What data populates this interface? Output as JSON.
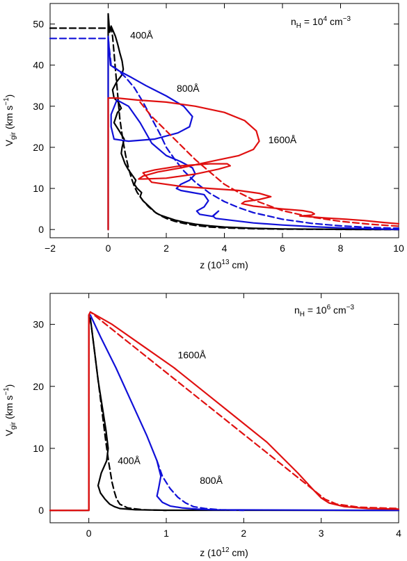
{
  "colors": {
    "black": "#000000",
    "blue": "#1010d8",
    "red": "#e01010"
  },
  "chart_data": [
    {
      "type": "line",
      "xlabel": {
        "base": "z (10",
        "sup": "13",
        "unit": " cm)"
      },
      "ylabel": {
        "main": "V",
        "sub": "gir",
        "unit": " (km s",
        "sup": "−1",
        "close": ")"
      },
      "xlim": [
        -2,
        10
      ],
      "ylim": [
        -2,
        55
      ],
      "xticks": [
        -2,
        0,
        2,
        4,
        6,
        8,
        10
      ],
      "xtick_labels": [
        "−2",
        "0",
        "2",
        "4",
        "6",
        "8",
        "10"
      ],
      "yticks": [
        0,
        10,
        20,
        30,
        40,
        50
      ],
      "ytick_labels": [
        "0",
        "10",
        "20",
        "30",
        "40",
        "50"
      ],
      "density_label": {
        "main": "n",
        "sub": "H",
        "eq": " = 10",
        "sup": "4",
        "unit": " cm",
        "sup2": "−3"
      },
      "annotations": [
        {
          "text": "400Å",
          "x": 1.15,
          "y": 46.5
        },
        {
          "text": "800Å",
          "x": 2.75,
          "y": 33.5
        },
        {
          "text": "1600Å",
          "x": 6.0,
          "y": 21.0
        }
      ],
      "series": [
        {
          "color": "black",
          "style": "solid",
          "x": [
            0,
            0,
            0.05,
            0.1,
            0.16,
            0.25,
            0.33,
            0.4,
            0.48,
            0.52,
            0.46,
            0.3,
            0.15,
            0.2,
            0.35,
            0.45,
            0.32,
            0.2,
            0.38,
            0.55,
            0.48,
            0.45,
            0.58,
            0.7,
            0.85,
            0.95,
            0.9,
            1.0,
            1.15,
            1.1,
            1.2,
            1.35,
            1.5,
            1.65,
            1.8,
            2.0,
            2.3,
            2.6,
            3.0,
            3.5,
            4.0,
            5.0,
            6.0,
            8.0,
            10.0
          ],
          "y": [
            0,
            52.5,
            48,
            49.5,
            48.5,
            47,
            45,
            43,
            41,
            39,
            37.5,
            36,
            34,
            32,
            31,
            29.5,
            28.5,
            26,
            24,
            22,
            20,
            18.5,
            16,
            14.5,
            13,
            12,
            11,
            10,
            9,
            8,
            7,
            6,
            5,
            4,
            3.5,
            3,
            2.3,
            1.8,
            1.3,
            0.9,
            0.6,
            0.3,
            0.15,
            0.05,
            0
          ]
        },
        {
          "color": "black",
          "style": "dashed",
          "x": [
            -2,
            0,
            0.1,
            0.15,
            0.2,
            0.25,
            0.3,
            0.35,
            0.4,
            0.5,
            0.6,
            0.7,
            0.8,
            0.9,
            1.0,
            1.2,
            1.4,
            1.6,
            1.8,
            2.0,
            2.3,
            2.6,
            3.0,
            3.5,
            4.0,
            5.0,
            6.0,
            8.0,
            10.0
          ],
          "y": [
            49,
            49,
            49,
            47,
            43,
            39,
            35,
            31,
            27,
            22,
            18,
            15,
            12.5,
            10.5,
            9,
            7,
            5.5,
            4.3,
            3.4,
            2.7,
            2.0,
            1.5,
            1.0,
            0.6,
            0.4,
            0.2,
            0.1,
            0.03,
            0
          ]
        },
        {
          "color": "blue",
          "style": "solid",
          "x": [
            0,
            0,
            0.08,
            0.18,
            0.4,
            0.8,
            1.3,
            2.0,
            2.6,
            2.9,
            2.8,
            2.4,
            1.6,
            0.7,
            0.2,
            0.1,
            0.1,
            0.3,
            0.7,
            1.1,
            1.5,
            2.0,
            2.5,
            2.9,
            3.0,
            2.8,
            2.5,
            2.35,
            2.5,
            2.9,
            3.3,
            3.45,
            3.3,
            3.05,
            3.15,
            3.6,
            3.8,
            3.6,
            3.7,
            4.3,
            5.0,
            6.0,
            7.0,
            8.0,
            9.0,
            10.0
          ],
          "y": [
            0,
            47,
            40,
            39.5,
            38.5,
            37,
            35,
            32.5,
            30,
            27.5,
            25,
            23.5,
            22,
            21.5,
            22,
            25,
            28,
            31.5,
            30,
            26,
            21,
            18,
            16.5,
            15,
            13.5,
            12,
            11,
            10,
            9.5,
            9,
            8.5,
            7,
            5.5,
            4.5,
            3.7,
            3.2,
            4.5,
            3.3,
            2.7,
            2.2,
            1.6,
            1.1,
            0.7,
            0.4,
            0.2,
            0
          ]
        },
        {
          "color": "blue",
          "style": "dashed",
          "x": [
            -2,
            0,
            0.1,
            0.3,
            0.6,
            0.9,
            1.2,
            1.5,
            1.8,
            2.0,
            2.3,
            2.6,
            3.0,
            3.5,
            4.0,
            4.5,
            5.0,
            6.0,
            7.0,
            8.0,
            9.0,
            10.0
          ],
          "y": [
            46.5,
            46.5,
            40,
            39,
            37,
            34.5,
            31,
            27,
            23,
            20,
            17,
            14.3,
            11.5,
            8.8,
            6.8,
            5.3,
            4.1,
            2.5,
            1.5,
            0.9,
            0.5,
            0.3
          ]
        },
        {
          "color": "red",
          "style": "solid",
          "x": [
            0,
            0,
            0.3,
            1.0,
            2.0,
            3.0,
            4.0,
            4.7,
            5.1,
            5.2,
            5.0,
            4.5,
            3.5,
            2.5,
            1.7,
            1.2,
            1.05,
            1.2,
            2.0,
            3.0,
            3.8,
            4.2,
            4.1,
            3.5,
            2.5,
            1.6,
            1.2,
            1.5,
            2.5,
            3.5,
            4.5,
            5.2,
            5.6,
            5.2,
            4.7,
            4.6,
            5.0,
            6.0,
            6.7,
            7.0,
            7.1,
            7.0,
            6.6,
            7.5,
            8.2,
            8.8,
            9.2,
            9.5,
            10.0
          ],
          "y": [
            0,
            32,
            32,
            31.5,
            31,
            30,
            28.5,
            26.5,
            24,
            21.5,
            19.5,
            18,
            16.5,
            15,
            14,
            13,
            12.3,
            12.3,
            12.5,
            13.5,
            14.7,
            15.5,
            16,
            16,
            15.5,
            14.5,
            13.8,
            11.5,
            10.5,
            10,
            9.5,
            8.8,
            8.0,
            7.3,
            6.8,
            6.3,
            5.7,
            5.0,
            4.6,
            4.2,
            3.8,
            3.5,
            3.3,
            2.8,
            2.5,
            2.2,
            1.9,
            1.7,
            1.4
          ]
        },
        {
          "color": "red",
          "style": "dashed",
          "x": [
            1.1,
            1.5,
            2.0,
            2.5,
            3.0,
            3.5,
            4.0,
            4.5,
            5.0,
            6.0,
            7.0,
            8.0,
            9.0,
            10.0
          ],
          "y": [
            31,
            27.5,
            24,
            20.5,
            17,
            14,
            11,
            9,
            7.2,
            4.6,
            3.0,
            2.0,
            1.3,
            0.8
          ]
        }
      ]
    },
    {
      "type": "line",
      "xlabel": {
        "base": "z (10",
        "sup": "12",
        "unit": " cm)"
      },
      "ylabel": {
        "main": "V",
        "sub": "gir",
        "unit": " (km s",
        "sup": "−1",
        "close": ")"
      },
      "xlim": [
        -0.5,
        4
      ],
      "ylim": [
        -2,
        35
      ],
      "xticks": [
        0,
        1,
        2,
        3,
        4
      ],
      "xtick_labels": [
        "0",
        "1",
        "2",
        "3",
        "4"
      ],
      "yticks": [
        0,
        10,
        20,
        30
      ],
      "ytick_labels": [
        "0",
        "10",
        "20",
        "30"
      ],
      "density_label": {
        "main": "n",
        "sub": "H",
        "eq": " = 10",
        "sup": "6",
        "unit": " cm",
        "sup2": "−3"
      },
      "annotations": [
        {
          "text": "1600Å",
          "x": 1.33,
          "y": 24.5
        },
        {
          "text": "400Å",
          "x": 0.52,
          "y": 7.5
        },
        {
          "text": "800Å",
          "x": 1.58,
          "y": 4.3
        }
      ],
      "series": [
        {
          "color": "black",
          "style": "solid",
          "x": [
            -0.5,
            0.0,
            0.0,
            0.03,
            0.07,
            0.12,
            0.17,
            0.22,
            0.25,
            0.23,
            0.16,
            0.12,
            0.15,
            0.21,
            0.27,
            0.33,
            0.4,
            0.6,
            1.0,
            4.0
          ],
          "y": [
            0,
            0,
            31.5,
            30,
            26,
            21,
            17,
            13,
            10,
            8,
            6,
            4,
            2.8,
            1.8,
            1.0,
            0.6,
            0.3,
            0.1,
            0.02,
            0
          ]
        },
        {
          "color": "black",
          "style": "dashed",
          "x": [
            0.02,
            0.1,
            0.17,
            0.22,
            0.26,
            0.3,
            0.33,
            0.36,
            0.4,
            0.5,
            0.7,
            1.0
          ],
          "y": [
            31,
            23,
            16,
            11,
            7.5,
            4.5,
            3,
            1.8,
            1.0,
            0.4,
            0.1,
            0
          ]
        },
        {
          "color": "blue",
          "style": "solid",
          "x": [
            0.02,
            0.15,
            0.35,
            0.55,
            0.75,
            0.88,
            0.93,
            0.9,
            0.88,
            0.95,
            1.05,
            1.2,
            1.4,
            1.6,
            4.0
          ],
          "y": [
            31.5,
            28,
            23,
            17.5,
            12,
            8,
            5.5,
            3.5,
            2.3,
            1.3,
            0.7,
            0.4,
            0.2,
            0.1,
            0
          ]
        },
        {
          "color": "blue",
          "style": "dashed",
          "x": [
            0.88,
            0.95,
            1.05,
            1.15,
            1.25,
            1.35,
            1.5,
            1.7,
            2.0
          ],
          "y": [
            8,
            5.5,
            3.5,
            2.1,
            1.2,
            0.6,
            0.3,
            0.1,
            0
          ]
        },
        {
          "color": "red",
          "style": "solid",
          "x": [
            -0.5,
            0.0,
            0.0,
            0.02,
            0.3,
            0.7,
            1.1,
            1.5,
            1.9,
            2.3,
            2.7,
            2.9,
            3.0,
            3.1,
            3.3,
            3.6,
            4.0
          ],
          "y": [
            0,
            0,
            31.5,
            32,
            30,
            26.5,
            23,
            19,
            15,
            11,
            6,
            3.3,
            2.0,
            1.2,
            0.6,
            0.3,
            0.2
          ]
        },
        {
          "color": "red",
          "style": "dashed",
          "x": [
            -0.5,
            0.0,
            0.0,
            0.02,
            2.9,
            3.05,
            3.2,
            3.5,
            4.0
          ],
          "y": [
            0,
            0,
            31.5,
            32,
            3.3,
            1.8,
            1.0,
            0.5,
            0.3
          ]
        }
      ]
    }
  ]
}
